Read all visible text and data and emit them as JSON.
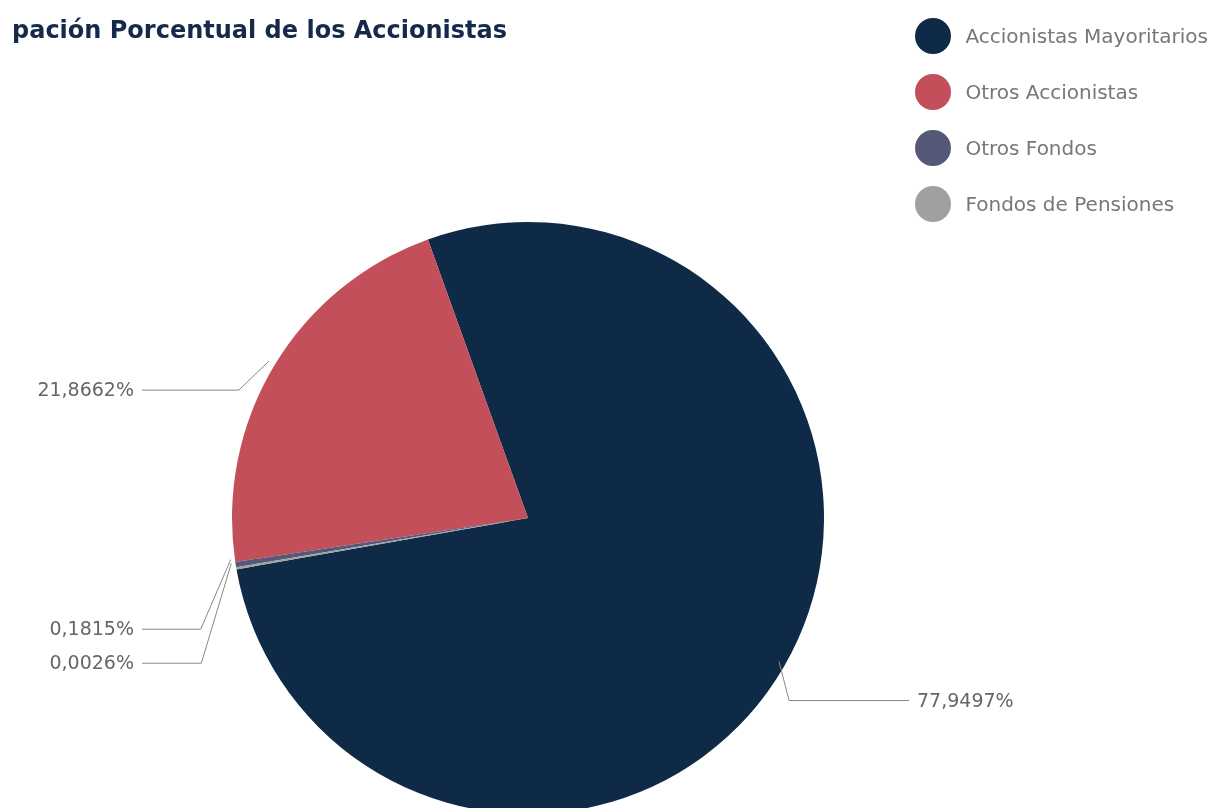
{
  "chart_data": {
    "type": "pie",
    "title": "pación Porcentual de los Accionistas",
    "categories": [
      "Accionistas Mayoritarios",
      "Otros Accionistas",
      "Otros Fondos",
      "Fondos de Pensiones"
    ],
    "values": [
      77.9497,
      21.8662,
      0.1815,
      0.0026
    ],
    "colors": [
      "#0f2a47",
      "#c34f5a",
      "#565878",
      "#a0a09f"
    ],
    "value_labels": [
      "77,9497%",
      "21,8662%",
      "0,1815%",
      "0,0026%"
    ],
    "legend": "top right"
  }
}
